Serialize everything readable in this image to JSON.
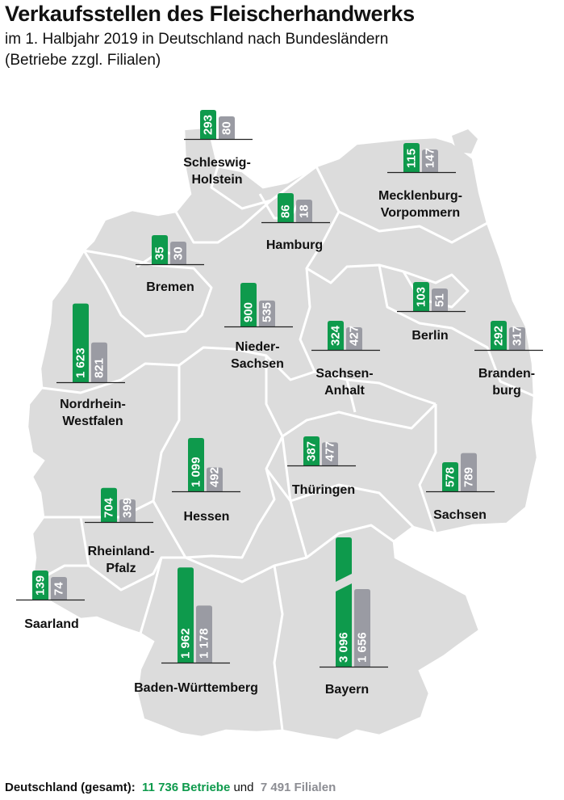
{
  "title": "Verkaufsstellen des Fleischerhandwerks",
  "subtitle_line1": "im 1. Halbjahr 2019 in Deutschland nach Bundesländern",
  "subtitle_line2": "(Betriebe zzgl. Filialen)",
  "colors": {
    "betriebe": "#0e9a4c",
    "filialen": "#9a9ba3",
    "map_fill": "#dcdcdc",
    "map_border": "#ffffff"
  },
  "chart_data": {
    "type": "bar",
    "title": "Verkaufsstellen des Fleischerhandwerks",
    "series": [
      {
        "name": "Betriebe",
        "color": "#0e9a4c"
      },
      {
        "name": "Filialen",
        "color": "#9a9ba3"
      }
    ],
    "regions": [
      {
        "label_lines": [
          "Schleswig-",
          "Holstein"
        ],
        "betriebe": 293,
        "filialen": 80,
        "betriebe_label": "293",
        "filialen_label": "80"
      },
      {
        "label_lines": [
          "Mecklenburg-",
          "Vorpommern"
        ],
        "betriebe": 115,
        "filialen": 147,
        "betriebe_label": "115",
        "filialen_label": "147"
      },
      {
        "label_lines": [
          "Hamburg"
        ],
        "betriebe": 86,
        "filialen": 18,
        "betriebe_label": "86",
        "filialen_label": "18"
      },
      {
        "label_lines": [
          "Bremen"
        ],
        "betriebe": 35,
        "filialen": 30,
        "betriebe_label": "35",
        "filialen_label": "30"
      },
      {
        "label_lines": [
          "Nieder-",
          "Sachsen"
        ],
        "betriebe": 900,
        "filialen": 535,
        "betriebe_label": "900",
        "filialen_label": "535"
      },
      {
        "label_lines": [
          "Berlin"
        ],
        "betriebe": 103,
        "filialen": 51,
        "betriebe_label": "103",
        "filialen_label": "51"
      },
      {
        "label_lines": [
          "Sachsen-",
          "Anhalt"
        ],
        "betriebe": 324,
        "filialen": 427,
        "betriebe_label": "324",
        "filialen_label": "427"
      },
      {
        "label_lines": [
          "Branden-",
          "burg"
        ],
        "betriebe": 292,
        "filialen": 317,
        "betriebe_label": "292",
        "filialen_label": "317"
      },
      {
        "label_lines": [
          "Nordrhein-",
          "Westfalen"
        ],
        "betriebe": 1623,
        "filialen": 821,
        "betriebe_label": "1 623",
        "filialen_label": "821"
      },
      {
        "label_lines": [
          "Hessen"
        ],
        "betriebe": 1099,
        "filialen": 492,
        "betriebe_label": "1 099",
        "filialen_label": "492"
      },
      {
        "label_lines": [
          "Thüringen"
        ],
        "betriebe": 387,
        "filialen": 477,
        "betriebe_label": "387",
        "filialen_label": "477"
      },
      {
        "label_lines": [
          "Sachsen"
        ],
        "betriebe": 578,
        "filialen": 789,
        "betriebe_label": "578",
        "filialen_label": "789"
      },
      {
        "label_lines": [
          "Rheinland-",
          "Pfalz"
        ],
        "betriebe": 704,
        "filialen": 399,
        "betriebe_label": "704",
        "filialen_label": "399"
      },
      {
        "label_lines": [
          "Saarland"
        ],
        "betriebe": 139,
        "filialen": 74,
        "betriebe_label": "139",
        "filialen_label": "74"
      },
      {
        "label_lines": [
          "Baden-Württemberg"
        ],
        "betriebe": 1962,
        "filialen": 1178,
        "betriebe_label": "1 962",
        "filialen_label": "1 178"
      },
      {
        "label_lines": [
          "Bayern"
        ],
        "betriebe": 3096,
        "filialen": 1656,
        "betriebe_label": "3 096",
        "filialen_label": "1 656",
        "axis_break": true
      }
    ]
  },
  "footer": {
    "label": "Deutschland (gesamt):",
    "betriebe_text": "11 736 Betriebe",
    "und": "und",
    "filialen_text": "7 491 Filialen"
  }
}
